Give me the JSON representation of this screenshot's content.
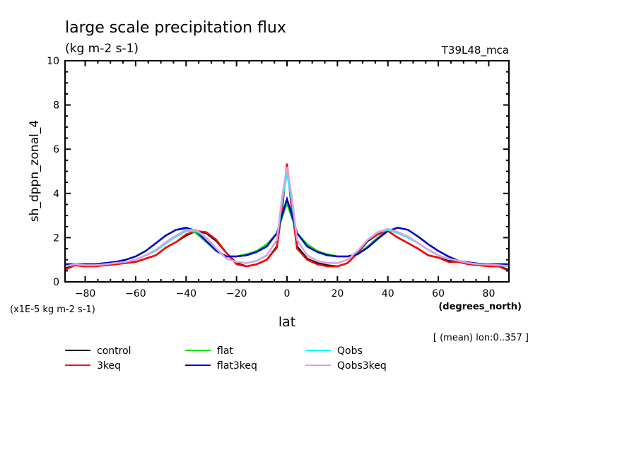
{
  "chart_data": {
    "type": "line",
    "title": "large scale precipitation flux",
    "subtitle": "(kg m-2 s-1)",
    "top_right_label": "T39L48_mca",
    "ylabel": "sh_dppn_zonal_4",
    "yunits_note": "(x1E-5 kg m-2 s-1)",
    "xlabel": "lat",
    "xunits": "(degrees_north)",
    "footnote": "[ (mean) lon:0..357 ]",
    "xlim": [
      -88,
      88
    ],
    "ylim": [
      0,
      10
    ],
    "xticks": [
      -80,
      -60,
      -40,
      -20,
      0,
      20,
      40,
      60,
      80
    ],
    "xtick_labels": [
      "-80",
      "-60",
      "-40",
      "-20",
      "0",
      "20",
      "40",
      "60",
      "80"
    ],
    "yticks": [
      0,
      2,
      4,
      6,
      8,
      10
    ],
    "ytick_labels": [
      "0",
      "2",
      "4",
      "6",
      "8",
      "10"
    ],
    "grid": false,
    "legend_position": "bottom",
    "x": [
      -88,
      -84,
      -80,
      -76,
      -72,
      -68,
      -64,
      -60,
      -56,
      -52,
      -48,
      -44,
      -40,
      -36,
      -32,
      -28,
      -24,
      -20,
      -16,
      -12,
      -8,
      -4,
      -2,
      0,
      2,
      4,
      8,
      12,
      16,
      20,
      24,
      28,
      32,
      36,
      40,
      44,
      48,
      52,
      56,
      60,
      64,
      68,
      72,
      76,
      80,
      84,
      88
    ],
    "series": [
      {
        "name": "control",
        "color": "#000000",
        "values": [
          0.6,
          0.75,
          0.7,
          0.75,
          0.75,
          0.8,
          0.85,
          0.9,
          1.05,
          1.2,
          1.55,
          1.8,
          2.1,
          2.3,
          2.2,
          1.85,
          1.3,
          0.85,
          0.7,
          0.8,
          1.0,
          1.6,
          3.2,
          5.3,
          3.2,
          1.6,
          1.05,
          0.85,
          0.75,
          0.7,
          0.85,
          1.3,
          1.85,
          2.15,
          2.3,
          2.0,
          1.75,
          1.5,
          1.2,
          1.1,
          0.95,
          0.9,
          0.8,
          0.8,
          0.75,
          0.7,
          0.55
        ]
      },
      {
        "name": "3keq",
        "color": "#ff0000",
        "values": [
          0.55,
          0.75,
          0.7,
          0.7,
          0.75,
          0.8,
          0.85,
          0.9,
          1.05,
          1.2,
          1.55,
          1.8,
          2.15,
          2.3,
          2.25,
          1.9,
          1.3,
          0.8,
          0.7,
          0.8,
          1.0,
          1.55,
          3.3,
          5.35,
          3.3,
          1.5,
          1.0,
          0.8,
          0.7,
          0.7,
          0.85,
          1.3,
          1.9,
          2.15,
          2.3,
          2.0,
          1.75,
          1.5,
          1.2,
          1.1,
          0.9,
          0.9,
          0.8,
          0.75,
          0.7,
          0.7,
          0.5
        ]
      },
      {
        "name": "flat",
        "color": "#00e000",
        "values": [
          0.8,
          0.8,
          0.8,
          0.8,
          0.85,
          0.9,
          1.0,
          1.15,
          1.4,
          1.75,
          2.1,
          2.35,
          2.4,
          2.2,
          1.8,
          1.4,
          1.15,
          1.15,
          1.25,
          1.4,
          1.7,
          2.2,
          2.9,
          3.55,
          2.9,
          2.2,
          1.7,
          1.4,
          1.25,
          1.15,
          1.15,
          1.25,
          1.6,
          2.0,
          2.3,
          2.45,
          2.35,
          2.05,
          1.7,
          1.4,
          1.15,
          0.95,
          0.88,
          0.82,
          0.8,
          0.8,
          0.8
        ]
      },
      {
        "name": "flat3keq",
        "color": "#0000cc",
        "values": [
          0.8,
          0.8,
          0.8,
          0.8,
          0.85,
          0.9,
          1.0,
          1.15,
          1.4,
          1.75,
          2.1,
          2.35,
          2.45,
          2.3,
          1.85,
          1.4,
          1.15,
          1.15,
          1.2,
          1.35,
          1.6,
          2.2,
          3.0,
          3.75,
          3.0,
          2.2,
          1.6,
          1.35,
          1.2,
          1.15,
          1.15,
          1.25,
          1.55,
          1.95,
          2.3,
          2.45,
          2.35,
          2.05,
          1.7,
          1.4,
          1.15,
          0.95,
          0.88,
          0.82,
          0.8,
          0.8,
          0.8
        ]
      },
      {
        "name": "Qobs",
        "color": "#00ffff",
        "values": [
          0.7,
          0.8,
          0.75,
          0.75,
          0.8,
          0.85,
          0.9,
          1.0,
          1.2,
          1.4,
          1.75,
          2.05,
          2.3,
          2.3,
          2.0,
          1.5,
          1.05,
          0.9,
          0.85,
          0.95,
          1.2,
          1.9,
          3.6,
          4.9,
          3.6,
          1.9,
          1.2,
          0.95,
          0.85,
          0.85,
          1.0,
          1.4,
          1.9,
          2.25,
          2.35,
          2.2,
          2.0,
          1.75,
          1.45,
          1.2,
          1.05,
          0.95,
          0.85,
          0.8,
          0.78,
          0.75,
          0.7
        ]
      },
      {
        "name": "Qobs3keq",
        "color": "#dda0dd",
        "values": [
          0.7,
          0.8,
          0.75,
          0.75,
          0.8,
          0.85,
          0.9,
          1.0,
          1.2,
          1.45,
          1.8,
          2.1,
          2.35,
          2.35,
          2.0,
          1.5,
          1.05,
          0.9,
          0.85,
          0.95,
          1.2,
          1.9,
          3.8,
          5.2,
          3.8,
          1.9,
          1.2,
          0.95,
          0.85,
          0.85,
          1.0,
          1.4,
          1.9,
          2.25,
          2.4,
          2.25,
          2.05,
          1.75,
          1.45,
          1.2,
          1.05,
          0.95,
          0.85,
          0.8,
          0.78,
          0.75,
          0.72
        ]
      }
    ]
  }
}
